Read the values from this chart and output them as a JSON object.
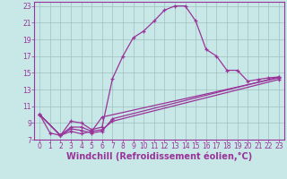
{
  "xlabel": "Windchill (Refroidissement éolien,°C)",
  "xlim": [
    -0.5,
    23.5
  ],
  "ylim": [
    7,
    23.5
  ],
  "xticks": [
    0,
    1,
    2,
    3,
    4,
    5,
    6,
    7,
    8,
    9,
    10,
    11,
    12,
    13,
    14,
    15,
    16,
    17,
    18,
    19,
    20,
    21,
    22,
    23
  ],
  "yticks": [
    7,
    9,
    11,
    13,
    15,
    17,
    19,
    21,
    23
  ],
  "bg_color": "#c8e8e8",
  "line_color": "#993399",
  "grid_color": "#a0c0c0",
  "curve_main_x": [
    0,
    1,
    2,
    3,
    4,
    5,
    6,
    7,
    8,
    9,
    10,
    11,
    12,
    13,
    14,
    15,
    16,
    17,
    18,
    19,
    20,
    21,
    22,
    23
  ],
  "curve_main_y": [
    10.0,
    7.8,
    7.5,
    9.2,
    9.0,
    8.2,
    8.5,
    14.3,
    17.0,
    19.2,
    20.0,
    21.2,
    22.5,
    23.0,
    23.0,
    21.2,
    17.8,
    17.0,
    15.3,
    15.3,
    14.0,
    14.2,
    14.4,
    14.5
  ],
  "curve2_x": [
    0,
    2,
    3,
    4,
    5,
    6,
    23
  ],
  "curve2_y": [
    10.0,
    7.5,
    8.0,
    7.7,
    8.0,
    9.7,
    14.4
  ],
  "curve3_x": [
    0,
    2,
    3,
    4,
    5,
    6,
    7,
    23
  ],
  "curve3_y": [
    10.0,
    7.5,
    8.3,
    8.1,
    7.8,
    8.0,
    9.5,
    14.5
  ],
  "curve4_x": [
    0,
    2,
    3,
    4,
    5,
    6,
    7,
    23
  ],
  "curve4_y": [
    10.0,
    7.5,
    8.5,
    8.5,
    8.0,
    8.2,
    9.2,
    14.2
  ],
  "tick_fontsize": 5.5,
  "label_fontsize": 7.0
}
